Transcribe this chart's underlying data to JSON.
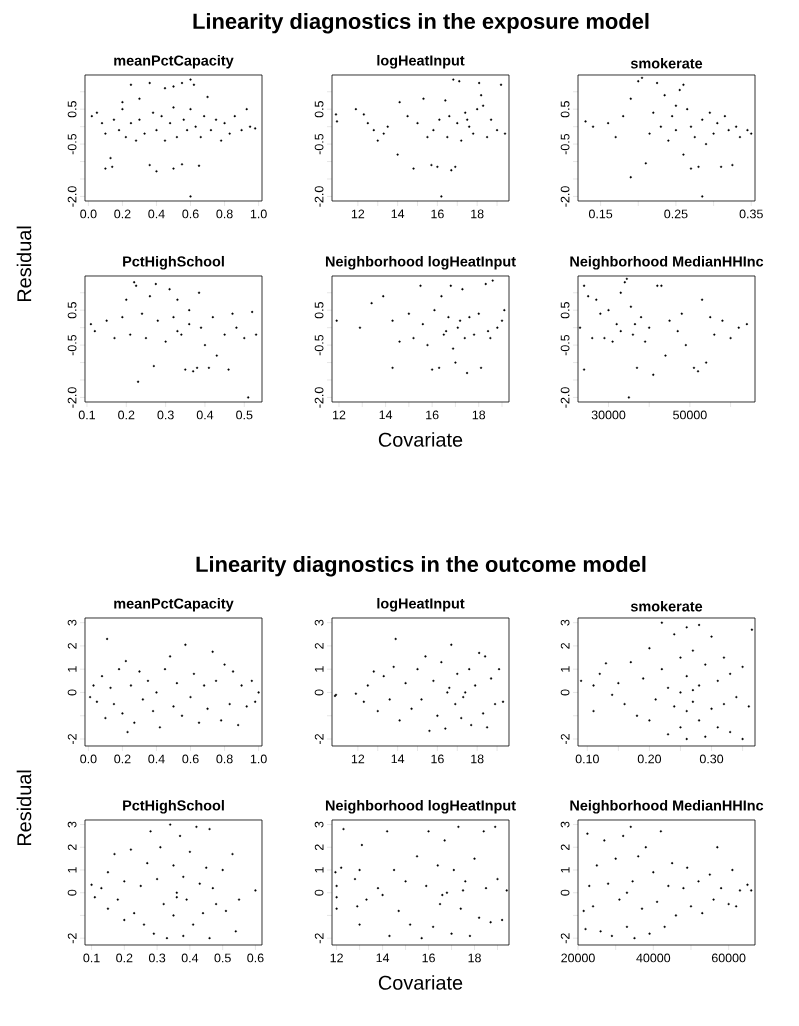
{
  "chart_data": [
    {
      "type": "scatter",
      "title": "meanPctCapacity",
      "color": "#000000",
      "marker": "circle",
      "xlim": [
        -0.02,
        1.02
      ],
      "ylim": [
        -2.13,
        1.48
      ],
      "xticks": [
        {
          "value": 0,
          "label": "0.0"
        },
        0.2,
        0.4,
        0.6,
        0.8,
        {
          "value": 1,
          "label": "1.0"
        }
      ],
      "yticks": [
        {
          "value": -2,
          "label": "-2.0"
        },
        {
          "value": -1.5,
          "label": null
        },
        {
          "value": -1,
          "label": null
        },
        -0.5,
        {
          "value": 0,
          "label": null
        },
        0.5,
        {
          "value": 1,
          "label": null
        }
      ],
      "x": [
        0.6,
        0.1,
        0.14,
        0.13,
        0.36,
        0.4,
        0.5,
        0.55,
        0.65,
        0.25,
        0.36,
        0.5,
        0.55,
        0.6,
        0.62,
        0.45,
        0.7,
        0.3,
        0.2,
        0.02,
        0.05,
        0.08,
        0.1,
        0.15,
        0.18,
        0.2,
        0.22,
        0.25,
        0.28,
        0.3,
        0.33,
        0.38,
        0.4,
        0.43,
        0.45,
        0.48,
        0.5,
        0.52,
        0.56,
        0.58,
        0.6,
        0.63,
        0.66,
        0.68,
        0.72,
        0.75,
        0.78,
        0.8,
        0.83,
        0.86,
        0.9,
        0.93,
        0.95,
        0.98
      ],
      "values": [
        -2.0,
        -1.2,
        -1.15,
        -0.9,
        -1.1,
        -1.28,
        -1.2,
        -1.08,
        -1.12,
        1.2,
        1.25,
        1.15,
        1.25,
        1.35,
        1.2,
        1.1,
        0.85,
        0.8,
        0.7,
        0.3,
        0.4,
        0.1,
        -0.2,
        0.2,
        -0.1,
        0.5,
        -0.3,
        0.1,
        -0.4,
        0.2,
        -0.2,
        0.4,
        -0.1,
        0.3,
        -0.4,
        0.1,
        0.55,
        -0.3,
        0.2,
        -0.1,
        0.5,
        0.0,
        -0.3,
        0.3,
        -0.1,
        0.2,
        -0.4,
        0.1,
        -0.2,
        0.3,
        -0.1,
        0.5,
        0.0,
        -0.05
      ]
    },
    {
      "type": "scatter",
      "title": "logHeatInput",
      "annotations": [
        "Linearity diagnostics in the exposure model"
      ],
      "color": "#000000",
      "marker": "circle",
      "xlim": [
        10.7,
        19.6
      ],
      "ylim": [
        -2.13,
        1.48
      ],
      "xticks": [
        12,
        {
          "value": 13,
          "label": null
        },
        14,
        {
          "value": 15,
          "label": null
        },
        16,
        {
          "value": 17,
          "label": null
        },
        18,
        {
          "value": 19,
          "label": null
        }
      ],
      "yticks": [
        {
          "value": -2,
          "label": "-2.0"
        },
        {
          "value": -1.5,
          "label": null
        },
        {
          "value": -1,
          "label": null
        },
        -0.5,
        {
          "value": 0,
          "label": null
        },
        0.5,
        {
          "value": 1,
          "label": null
        }
      ],
      "x": [
        10.9,
        10.95,
        11.9,
        12.3,
        12.5,
        12.8,
        13.0,
        13.3,
        13.5,
        14.0,
        14.1,
        14.5,
        14.8,
        15.0,
        15.3,
        15.5,
        15.7,
        16.0,
        16.2,
        16.1,
        16.4,
        16.5,
        16.7,
        16.8,
        16.9,
        17.0,
        17.1,
        17.2,
        17.4,
        17.6,
        17.8,
        18.0,
        18.1,
        18.2,
        18.3,
        18.5,
        18.7,
        19.0,
        19.2,
        19.4,
        15.8,
        16.6,
        17.5
      ],
      "values": [
        0.35,
        0.15,
        0.5,
        0.35,
        0.1,
        -0.1,
        -0.4,
        -0.2,
        0.0,
        -0.8,
        0.7,
        0.3,
        -1.2,
        0.1,
        0.8,
        -0.3,
        -1.1,
        -1.15,
        -2.0,
        0.2,
        0.75,
        -0.3,
        -1.25,
        1.35,
        -1.15,
        0.1,
        1.3,
        -0.4,
        0.4,
        0.0,
        -0.2,
        0.5,
        1.25,
        0.9,
        0.6,
        -0.3,
        0.2,
        -0.1,
        1.2,
        -0.2,
        -0.1,
        0.3,
        0.2
      ]
    },
    {
      "type": "scatter",
      "title": "smokerate",
      "color": "#000000",
      "marker": "circle",
      "xlim": [
        0.12,
        0.355
      ],
      "ylim": [
        -2.13,
        1.48
      ],
      "xticks": [
        0.15,
        {
          "value": 0.2,
          "label": null
        },
        0.25,
        {
          "value": 0.3,
          "label": null
        },
        0.35
      ],
      "yticks": [
        {
          "value": -2,
          "label": "-2.0"
        },
        {
          "value": -1.5,
          "label": null
        },
        {
          "value": -1,
          "label": null
        },
        -0.5,
        {
          "value": 0,
          "label": null
        },
        0.5,
        {
          "value": 1,
          "label": null
        }
      ],
      "x": [
        0.13,
        0.14,
        0.16,
        0.17,
        0.18,
        0.19,
        0.19,
        0.2,
        0.205,
        0.21,
        0.215,
        0.22,
        0.225,
        0.23,
        0.235,
        0.24,
        0.245,
        0.25,
        0.255,
        0.26,
        0.26,
        0.265,
        0.27,
        0.275,
        0.28,
        0.285,
        0.285,
        0.29,
        0.295,
        0.3,
        0.305,
        0.31,
        0.315,
        0.32,
        0.325,
        0.33,
        0.335,
        0.345,
        0.35,
        0.25,
        0.27
      ],
      "values": [
        0.15,
        0.0,
        0.1,
        -0.3,
        0.3,
        -1.45,
        0.8,
        1.3,
        1.4,
        -1.05,
        -0.2,
        0.4,
        1.25,
        0.0,
        0.9,
        -0.4,
        0.3,
        -0.1,
        1.05,
        -0.8,
        1.2,
        0.5,
        -1.2,
        -0.3,
        -1.15,
        -2.0,
        0.2,
        -0.5,
        0.4,
        -0.2,
        0.1,
        -1.15,
        0.3,
        -0.1,
        -1.1,
        0.0,
        -0.3,
        -0.1,
        -0.2,
        0.6,
        0.0
      ]
    },
    {
      "type": "scatter",
      "title": "PctHighSchool",
      "ylabel": "Residual",
      "color": "#000000",
      "marker": "circle",
      "xlim": [
        0.095,
        0.545
      ],
      "ylim": [
        -2.13,
        1.48
      ],
      "xticks": [
        0.1,
        0.2,
        0.3,
        0.4,
        0.5
      ],
      "yticks": [
        {
          "value": -2,
          "label": "-2.0"
        },
        {
          "value": -1.5,
          "label": null
        },
        {
          "value": -1,
          "label": null
        },
        -0.5,
        {
          "value": 0,
          "label": null
        },
        0.5,
        {
          "value": 1,
          "label": null
        }
      ],
      "x": [
        0.11,
        0.12,
        0.15,
        0.17,
        0.19,
        0.2,
        0.21,
        0.22,
        0.225,
        0.23,
        0.24,
        0.25,
        0.26,
        0.27,
        0.275,
        0.28,
        0.3,
        0.31,
        0.32,
        0.33,
        0.34,
        0.35,
        0.36,
        0.37,
        0.38,
        0.385,
        0.39,
        0.4,
        0.41,
        0.42,
        0.43,
        0.45,
        0.46,
        0.47,
        0.48,
        0.5,
        0.51,
        0.52,
        0.53,
        0.36,
        0.33
      ],
      "values": [
        0.1,
        -0.1,
        0.2,
        -0.3,
        0.3,
        0.8,
        -0.2,
        1.3,
        1.2,
        -1.55,
        0.4,
        -0.3,
        0.9,
        -1.1,
        1.25,
        0.2,
        -0.4,
        1.1,
        0.3,
        0.8,
        -0.2,
        -1.2,
        0.5,
        -1.25,
        -1.15,
        1.0,
        0.0,
        -0.5,
        -1.15,
        0.3,
        -0.8,
        -0.2,
        -1.2,
        0.4,
        0.0,
        -0.3,
        -2.0,
        0.45,
        -0.2,
        0.1,
        -0.1
      ]
    },
    {
      "type": "scatter",
      "title": "Neighborhood logHeatInput",
      "xlabel": "Covariate",
      "color": "#000000",
      "marker": "circle",
      "xlim": [
        11.7,
        19.3
      ],
      "ylim": [
        -2.13,
        1.48
      ],
      "xticks": [
        12,
        {
          "value": 13,
          "label": null
        },
        14,
        {
          "value": 15,
          "label": null
        },
        16,
        {
          "value": 17,
          "label": null
        },
        18,
        {
          "value": 19,
          "label": null
        }
      ],
      "yticks": [
        {
          "value": -2,
          "label": "-2.0"
        },
        {
          "value": -1.5,
          "label": null
        },
        {
          "value": -1,
          "label": null
        },
        -0.5,
        {
          "value": 0,
          "label": null
        },
        0.5,
        {
          "value": 1,
          "label": null
        }
      ],
      "x": [
        11.9,
        12.9,
        13.4,
        13.9,
        14.3,
        14.3,
        14.6,
        15.0,
        15.2,
        15.5,
        15.6,
        15.8,
        16.0,
        16.1,
        16.3,
        16.4,
        16.5,
        16.7,
        16.8,
        16.9,
        17.0,
        17.1,
        17.3,
        17.4,
        17.5,
        17.6,
        17.8,
        18.0,
        18.1,
        18.3,
        18.5,
        18.6,
        18.8,
        19.0,
        19.1,
        16.6,
        17.2,
        18.4
      ],
      "values": [
        0.2,
        0.0,
        0.7,
        0.9,
        -1.15,
        0.2,
        -0.4,
        0.4,
        -0.3,
        1.2,
        0.1,
        -0.5,
        -1.2,
        0.5,
        -1.15,
        0.9,
        -0.2,
        0.3,
        1.2,
        -0.6,
        -1.0,
        0.0,
        1.1,
        -0.3,
        -1.3,
        0.3,
        -0.2,
        0.4,
        -1.15,
        1.25,
        -0.3,
        1.35,
        0.0,
        0.2,
        0.5,
        -0.1,
        0.2,
        -0.1
      ]
    },
    {
      "type": "scatter",
      "title": "Neighborhood MedianHHInc",
      "color": "#000000",
      "marker": "circle",
      "xlim": [
        22500,
        66000
      ],
      "ylim": [
        -2.13,
        1.48
      ],
      "xticks": [
        30000,
        {
          "value": 40000,
          "label": null
        },
        50000,
        {
          "value": 60000,
          "label": null
        }
      ],
      "yticks": [
        {
          "value": -2,
          "label": "-2.0"
        },
        {
          "value": -1.5,
          "label": null
        },
        {
          "value": -1,
          "label": null
        },
        -0.5,
        {
          "value": 0,
          "label": null
        },
        0.5,
        {
          "value": 1,
          "label": null
        }
      ],
      "x": [
        23000,
        24000,
        24000,
        25000,
        26000,
        27000,
        28000,
        29000,
        30000,
        31000,
        32000,
        33000,
        34000,
        34500,
        35000,
        35500,
        36000,
        37000,
        38000,
        39000,
        40000,
        41000,
        42000,
        43000,
        44000,
        45000,
        47000,
        48000,
        49000,
        51000,
        52000,
        53000,
        54000,
        55000,
        56000,
        58000,
        60000,
        62000,
        64000,
        33000,
        36500
      ],
      "values": [
        0.0,
        1.2,
        -1.2,
        0.9,
        -0.3,
        0.8,
        0.4,
        -0.3,
        0.5,
        -0.4,
        0.1,
        1.0,
        1.3,
        1.4,
        -2.0,
        0.6,
        -0.2,
        -1.15,
        0.3,
        -0.4,
        0.0,
        -1.35,
        1.2,
        1.2,
        -0.8,
        0.2,
        -0.1,
        0.4,
        -0.5,
        -1.15,
        -1.25,
        0.8,
        -1.0,
        0.3,
        -0.2,
        0.2,
        -0.3,
        0.0,
        0.1,
        -0.1,
        0.1
      ]
    },
    {
      "type": "scatter",
      "title": "meanPctCapacity",
      "color": "#000000",
      "marker": "circle",
      "xlim": [
        -0.02,
        1.02
      ],
      "ylim": [
        -2.3,
        3.2
      ],
      "xticks": [
        {
          "value": 0,
          "label": "0.0"
        },
        0.2,
        0.4,
        0.6,
        0.8,
        {
          "value": 1,
          "label": "1.0"
        }
      ],
      "yticks": [
        -2,
        {
          "value": -1,
          "label": null
        },
        0,
        1,
        2,
        3
      ],
      "x": [
        0.01,
        0.03,
        0.05,
        0.08,
        0.1,
        0.11,
        0.13,
        0.15,
        0.18,
        0.2,
        0.22,
        0.23,
        0.25,
        0.27,
        0.3,
        0.32,
        0.35,
        0.38,
        0.4,
        0.42,
        0.45,
        0.48,
        0.5,
        0.52,
        0.55,
        0.57,
        0.6,
        0.62,
        0.65,
        0.68,
        0.7,
        0.73,
        0.75,
        0.78,
        0.8,
        0.83,
        0.85,
        0.88,
        0.9,
        0.93,
        0.96,
        0.98,
        1.0
      ],
      "values": [
        -0.2,
        0.3,
        -0.4,
        0.7,
        -1.1,
        2.3,
        0.2,
        -0.5,
        1.0,
        -0.9,
        1.35,
        -1.7,
        0.3,
        -1.3,
        0.9,
        -0.3,
        0.5,
        -0.8,
        0.0,
        -1.5,
        1.0,
        1.55,
        -0.6,
        0.4,
        -1.0,
        2.05,
        -0.2,
        0.8,
        -1.3,
        0.3,
        -0.7,
        1.75,
        0.5,
        -1.2,
        1.2,
        -0.5,
        0.9,
        -1.4,
        0.3,
        -0.6,
        0.5,
        -0.4,
        0.0
      ]
    },
    {
      "type": "scatter",
      "title": "logHeatInput",
      "annotations": [
        "Linearity diagnostics in the outcome model"
      ],
      "color": "#000000",
      "marker": "circle",
      "xlim": [
        10.7,
        19.6
      ],
      "ylim": [
        -2.3,
        3.2
      ],
      "xticks": [
        12,
        {
          "value": 13,
          "label": null
        },
        14,
        {
          "value": 15,
          "label": null
        },
        16,
        {
          "value": 17,
          "label": null
        },
        18,
        {
          "value": 19,
          "label": null
        }
      ],
      "yticks": [
        -2,
        {
          "value": -1,
          "label": null
        },
        0,
        1,
        2,
        3
      ],
      "x": [
        10.85,
        10.9,
        11.9,
        12.3,
        12.5,
        12.8,
        13.0,
        13.3,
        13.6,
        13.8,
        13.9,
        14.1,
        14.4,
        14.7,
        15.0,
        15.2,
        15.4,
        15.6,
        15.8,
        16.0,
        16.2,
        16.4,
        16.6,
        16.7,
        16.9,
        17.0,
        17.2,
        17.4,
        17.6,
        17.7,
        17.9,
        18.1,
        18.3,
        18.4,
        18.5,
        18.7,
        18.9,
        19.1,
        19.3,
        16.5,
        17.3
      ],
      "values": [
        -0.15,
        -0.1,
        -0.05,
        -0.4,
        0.3,
        0.9,
        -0.8,
        0.7,
        -0.3,
        1.1,
        2.3,
        -1.2,
        0.4,
        -0.7,
        1.0,
        -0.3,
        1.55,
        -1.65,
        0.5,
        -1.0,
        1.3,
        -1.55,
        0.2,
        2.05,
        -0.5,
        0.8,
        -1.1,
        0.0,
        1.0,
        -1.4,
        0.3,
        1.7,
        -0.9,
        1.55,
        -1.5,
        0.6,
        -0.5,
        1.0,
        -0.4,
        0.0,
        -0.2
      ]
    },
    {
      "type": "scatter",
      "title": "smokerate",
      "color": "#000000",
      "marker": "circle",
      "xlim": [
        0.085,
        0.37
      ],
      "ylim": [
        -2.3,
        3.2
      ],
      "xticks": [
        {
          "value": 0.1,
          "label": "0.10"
        },
        {
          "value": 0.15,
          "label": null
        },
        {
          "value": 0.2,
          "label": "0.20"
        },
        {
          "value": 0.25,
          "label": null
        },
        {
          "value": 0.3,
          "label": "0.30"
        },
        {
          "value": 0.35,
          "label": null
        }
      ],
      "yticks": [
        -2,
        {
          "value": -1,
          "label": null
        },
        0,
        1,
        2,
        3
      ],
      "x": [
        0.09,
        0.11,
        0.11,
        0.12,
        0.13,
        0.14,
        0.15,
        0.16,
        0.17,
        0.18,
        0.19,
        0.2,
        0.2,
        0.21,
        0.22,
        0.22,
        0.23,
        0.23,
        0.24,
        0.24,
        0.25,
        0.25,
        0.25,
        0.26,
        0.26,
        0.26,
        0.27,
        0.27,
        0.28,
        0.28,
        0.28,
        0.29,
        0.29,
        0.3,
        0.3,
        0.31,
        0.31,
        0.32,
        0.32,
        0.33,
        0.33,
        0.34,
        0.35,
        0.35,
        0.36,
        0.365,
        0.27,
        0.26
      ],
      "values": [
        0.5,
        -0.8,
        0.3,
        0.8,
        1.25,
        -0.1,
        0.4,
        -0.5,
        1.3,
        -1.0,
        0.6,
        1.9,
        -1.2,
        -0.3,
        3.0,
        1.0,
        -1.8,
        0.2,
        2.5,
        -0.6,
        1.5,
        -1.5,
        0.0,
        2.8,
        -2.0,
        0.7,
        -0.4,
        1.8,
        2.9,
        -1.2,
        0.3,
        -1.9,
        1.2,
        -0.7,
        2.4,
        0.5,
        -1.5,
        1.5,
        -0.5,
        -1.7,
        0.8,
        -0.2,
        1.1,
        -2.0,
        -0.6,
        2.7,
        0.1,
        -0.8
      ]
    },
    {
      "type": "scatter",
      "title": "PctHighSchool",
      "ylabel": "Residual",
      "color": "#000000",
      "marker": "circle",
      "xlim": [
        0.08,
        0.62
      ],
      "ylim": [
        -2.3,
        3.2
      ],
      "xticks": [
        0.1,
        0.2,
        0.3,
        0.4,
        0.5,
        0.6
      ],
      "yticks": [
        -2,
        {
          "value": -1,
          "label": null
        },
        0,
        1,
        2,
        3
      ],
      "x": [
        0.1,
        0.11,
        0.13,
        0.15,
        0.15,
        0.17,
        0.18,
        0.2,
        0.2,
        0.22,
        0.23,
        0.25,
        0.26,
        0.27,
        0.28,
        0.29,
        0.3,
        0.31,
        0.32,
        0.33,
        0.34,
        0.35,
        0.35,
        0.36,
        0.37,
        0.38,
        0.38,
        0.39,
        0.4,
        0.41,
        0.42,
        0.43,
        0.44,
        0.45,
        0.46,
        0.46,
        0.47,
        0.48,
        0.5,
        0.51,
        0.53,
        0.54,
        0.55,
        0.6,
        0.36
      ],
      "values": [
        0.35,
        -0.2,
        0.2,
        -0.7,
        0.9,
        1.7,
        -0.3,
        -1.2,
        0.5,
        1.9,
        -0.9,
        0.3,
        -1.4,
        1.3,
        2.7,
        -1.8,
        0.6,
        2.0,
        -0.5,
        -2.0,
        3.0,
        1.2,
        -1.0,
        0.0,
        2.5,
        -1.9,
        0.7,
        -0.3,
        1.8,
        -1.4,
        2.9,
        0.4,
        -0.9,
        1.1,
        -2.0,
        2.8,
        0.2,
        -0.5,
        1.0,
        -0.8,
        1.7,
        -1.7,
        -0.3,
        0.1,
        -0.2
      ]
    },
    {
      "type": "scatter",
      "title": "Neighborhood logHeatInput",
      "xlabel": "Covariate",
      "color": "#000000",
      "marker": "circle",
      "xlim": [
        11.8,
        19.5
      ],
      "ylim": [
        -2.3,
        3.2
      ],
      "xticks": [
        12,
        {
          "value": 13,
          "label": null
        },
        14,
        {
          "value": 15,
          "label": null
        },
        16,
        {
          "value": 17,
          "label": null
        },
        18,
        {
          "value": 19,
          "label": null
        }
      ],
      "yticks": [
        -2,
        {
          "value": -1,
          "label": null
        },
        0,
        1,
        2,
        3
      ],
      "x": [
        11.95,
        12.0,
        12.0,
        12.0,
        12.2,
        12.3,
        12.8,
        12.9,
        13.0,
        13.0,
        13.1,
        13.3,
        13.8,
        14.0,
        14.2,
        14.3,
        14.5,
        14.7,
        15.0,
        15.2,
        15.5,
        15.7,
        15.9,
        16.0,
        16.2,
        16.4,
        16.5,
        16.7,
        16.8,
        17.0,
        17.1,
        17.3,
        17.4,
        17.6,
        17.8,
        18.0,
        18.2,
        18.4,
        18.5,
        18.7,
        18.9,
        19.0,
        19.2,
        19.4,
        16.6,
        17.5
      ],
      "values": [
        0.9,
        0.3,
        -0.2,
        -0.7,
        1.1,
        2.8,
        0.6,
        -0.6,
        1.0,
        -1.4,
        2.1,
        -0.3,
        0.2,
        -0.1,
        2.7,
        -1.9,
        1.0,
        -0.8,
        0.5,
        -1.4,
        1.6,
        -2.0,
        0.3,
        2.7,
        -1.5,
        1.2,
        -0.5,
        2.3,
        0.0,
        -1.8,
        1.0,
        2.9,
        -0.7,
        0.5,
        -1.9,
        1.5,
        -1.1,
        2.7,
        0.2,
        -1.3,
        2.9,
        0.6,
        -1.2,
        0.1,
        -0.1,
        0.1
      ]
    },
    {
      "type": "scatter",
      "title": "Neighborhood MedianHHInc",
      "color": "#000000",
      "marker": "circle",
      "xlim": [
        20000,
        67000
      ],
      "ylim": [
        -2.3,
        3.2
      ],
      "xticks": [
        20000,
        {
          "value": 30000,
          "label": null
        },
        40000,
        {
          "value": 50000,
          "label": null
        },
        60000
      ],
      "yticks": [
        -2,
        {
          "value": -1,
          "label": null
        },
        0,
        1,
        2,
        3
      ],
      "x": [
        21500,
        22000,
        22500,
        23000,
        24000,
        25000,
        26000,
        27000,
        28000,
        29000,
        30000,
        31000,
        32000,
        33000,
        34000,
        34500,
        35000,
        36000,
        37000,
        38000,
        39000,
        40000,
        41000,
        42000,
        43000,
        44000,
        45000,
        46000,
        48000,
        49000,
        50000,
        52000,
        53000,
        55000,
        56000,
        57000,
        58000,
        60000,
        61000,
        62000,
        63000,
        65000,
        66000,
        33000
      ],
      "values": [
        -0.8,
        -1.6,
        2.6,
        0.3,
        -0.6,
        1.2,
        -1.7,
        2.3,
        0.4,
        -1.9,
        1.5,
        -0.3,
        2.5,
        -1.5,
        2.9,
        0.5,
        -2.0,
        1.6,
        -0.7,
        2.0,
        -1.8,
        0.9,
        -0.4,
        2.7,
        -1.5,
        0.3,
        1.3,
        -1.0,
        0.2,
        1.1,
        -0.6,
        0.5,
        -0.9,
        0.8,
        -0.3,
        2.0,
        0.2,
        -0.5,
        1.0,
        -0.6,
        0.1,
        0.35,
        0.1,
        0.0
      ]
    }
  ]
}
